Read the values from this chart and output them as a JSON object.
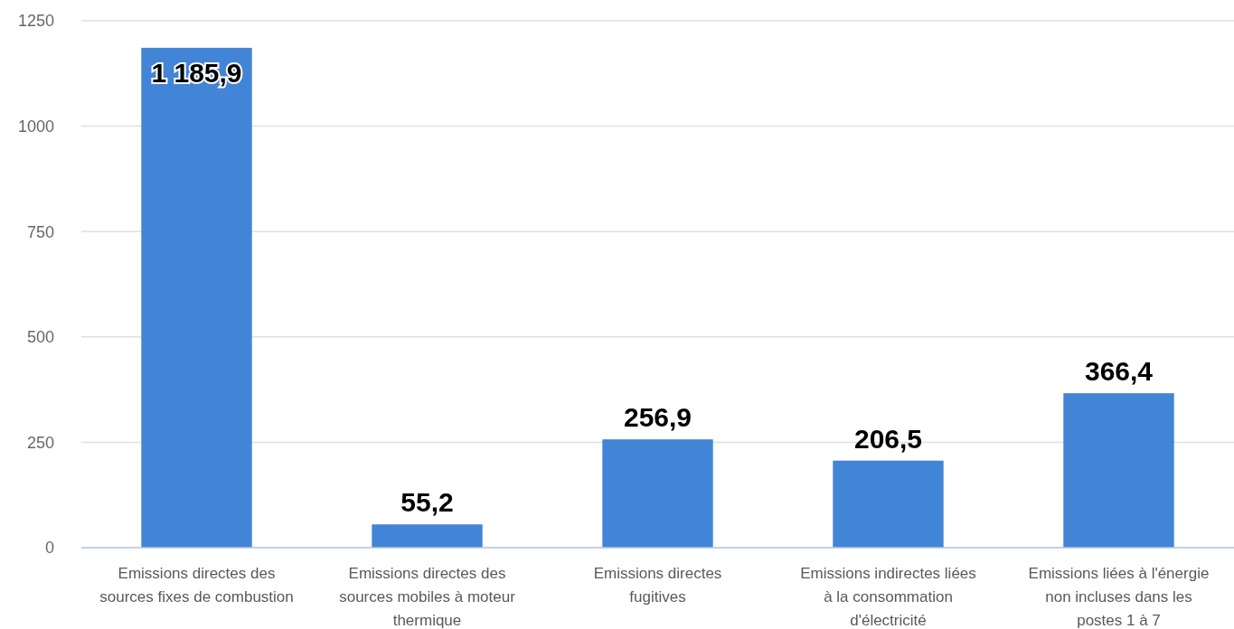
{
  "chart_data": {
    "type": "bar",
    "categories": [
      "Emissions directes des sources fixes de combustion",
      "Emissions directes des sources mobiles à moteur thermique",
      "Emissions directes fugitives",
      "Emissions indirectes liées à la consommation d'électricité",
      "Emissions liées à l'énergie non incluses dans les postes 1 à 7"
    ],
    "values": [
      1185.9,
      55.2,
      256.9,
      206.5,
      366.4
    ],
    "value_labels": [
      "1 185,9",
      "55,2",
      "256,9",
      "206,5",
      "366,4"
    ],
    "color": "#4285d6",
    "ylim": [
      0,
      1250
    ],
    "yticks": [
      0,
      250,
      500,
      750,
      1000,
      1250
    ],
    "grid": "y"
  }
}
